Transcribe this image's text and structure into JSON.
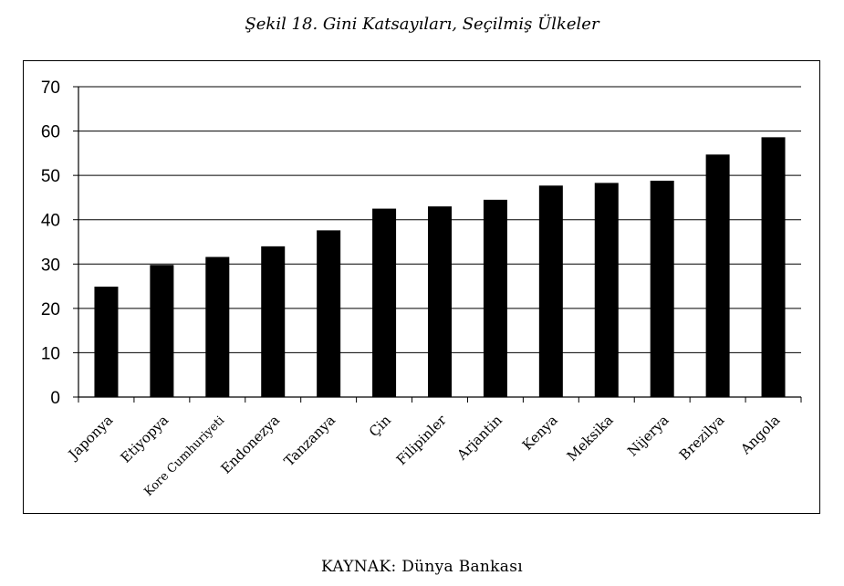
{
  "title": "Şekil 18. Gini Katsayıları, Seçilmiş Ülkeler",
  "source": "KAYNAK: Dünya Bankası",
  "chart_data": {
    "type": "bar",
    "categories": [
      "Japonya",
      "Etiyopya",
      "Kore Cumhuriyeti",
      "Endonezya",
      "Tanzanya",
      "Çin",
      "Filipinler",
      "Arjantin",
      "Kenya",
      "Meksika",
      "Nijerya",
      "Brezilya",
      "Angola"
    ],
    "values": [
      24.9,
      29.8,
      31.6,
      34.0,
      37.6,
      42.5,
      43.0,
      44.5,
      47.7,
      48.3,
      48.8,
      54.7,
      58.6
    ],
    "yticks": [
      "0",
      "10",
      "20",
      "30",
      "40",
      "50",
      "60",
      "70"
    ],
    "ylim": [
      0,
      70
    ],
    "xlabel": "",
    "ylabel": "",
    "grid": true,
    "bar_color": "#000000"
  }
}
